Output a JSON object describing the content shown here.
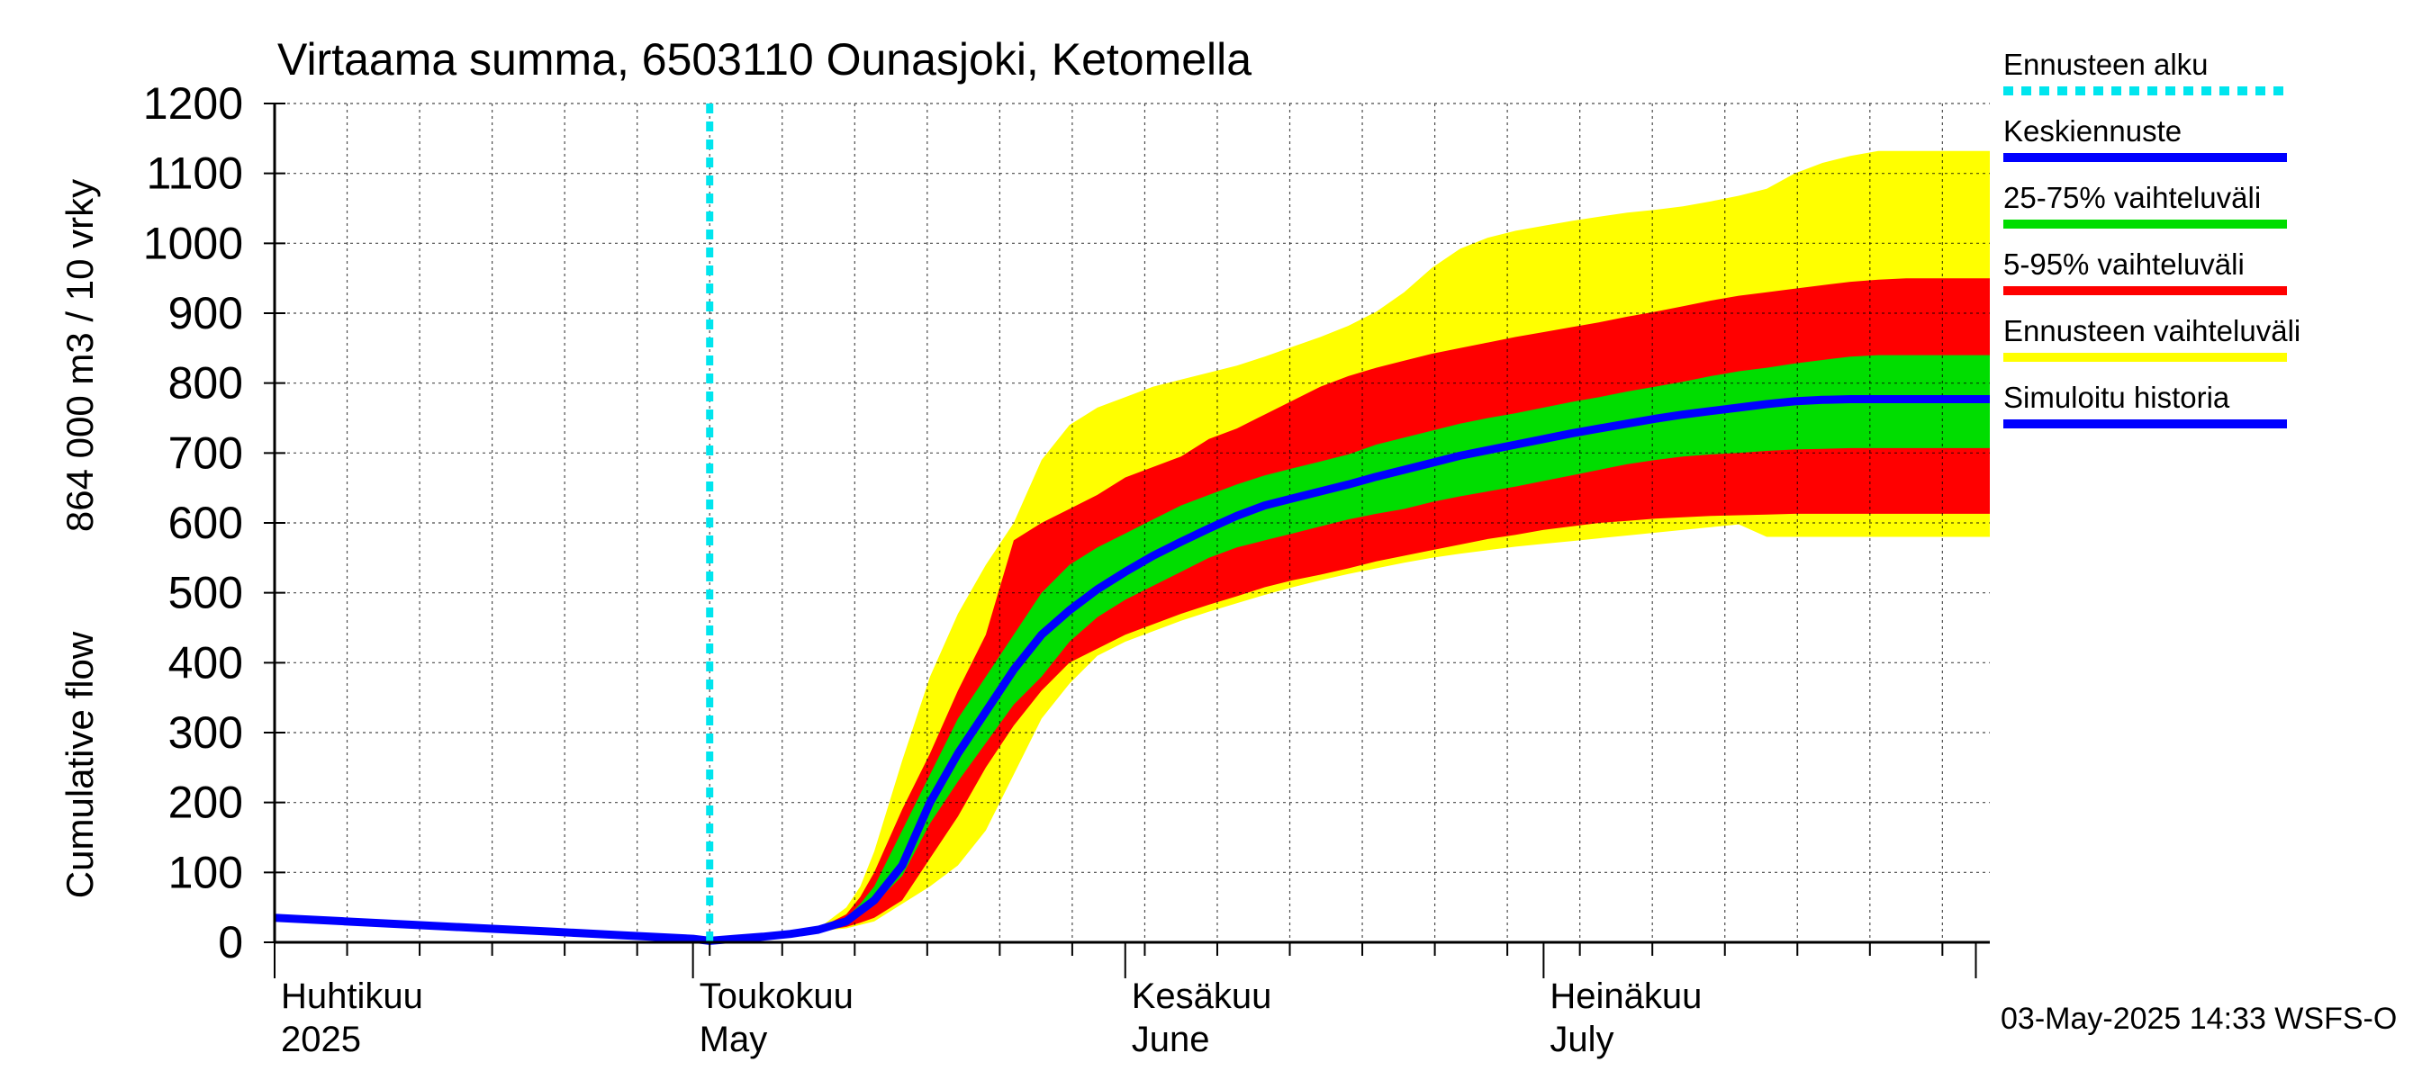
{
  "chart_data": {
    "type": "area",
    "title": "Virtaama summa, 6503110 Ounasjoki, Ketomella",
    "ylabel_top": "864 000 m3 / 10 vrky",
    "ylabel_bottom": "Cumulative flow",
    "ylim": [
      0,
      1200
    ],
    "y_ticks": [
      0,
      100,
      200,
      300,
      400,
      500,
      600,
      700,
      800,
      900,
      1000,
      1100,
      1200
    ],
    "x_range_days": [
      0,
      123
    ],
    "x_axis": {
      "start_date": "2025-04-01",
      "end_date": "2025-08-02",
      "month_labels": [
        {
          "fi": "Huhtikuu",
          "en": "2025",
          "day": 0
        },
        {
          "fi": "Toukokuu",
          "en": "May",
          "day": 30
        },
        {
          "fi": "Kesäkuu",
          "en": "June",
          "day": 61
        },
        {
          "fi": "Heinäkuu",
          "en": "July",
          "day": 91
        }
      ],
      "month_boundaries": [
        0,
        30,
        61,
        91,
        122
      ]
    },
    "grid": true,
    "forecast_start_day": 31.2,
    "legend": {
      "placement": "right",
      "entries": [
        {
          "label": "Ennusteen alku",
          "color": "#00e5ee",
          "style": "dotted"
        },
        {
          "label": "Keskiennuste",
          "color": "#0000ff",
          "style": "solid"
        },
        {
          "label": "25-75% vaihteluväli",
          "color": "#00dd00",
          "style": "solid"
        },
        {
          "label": "5-95% vaihteluväli",
          "color": "#ff0000",
          "style": "solid"
        },
        {
          "label": "Ennusteen vaihteluväli",
          "color": "#ffff00",
          "style": "solid"
        },
        {
          "label": "Simuloitu historia",
          "color": "#0000ff",
          "style": "solid"
        }
      ]
    },
    "colors": {
      "ensemble_range": "#ffff00",
      "range_5_95": "#ff0000",
      "range_25_75": "#00dd00",
      "median": "#0000ff",
      "history": "#0000ff",
      "forecast_start": "#00e5ee"
    },
    "series": {
      "history": {
        "x": [
          0,
          5,
          10,
          15,
          20,
          25,
          30,
          31.2
        ],
        "y": [
          35,
          30,
          25,
          20,
          15,
          10,
          5,
          2
        ]
      },
      "days": [
        31.2,
        33,
        35,
        37,
        39,
        41,
        42,
        43,
        45,
        47,
        49,
        51,
        53,
        55,
        57,
        59,
        61,
        63,
        65,
        67,
        69,
        71,
        73,
        75,
        77,
        79,
        81,
        83,
        85,
        87,
        89,
        91,
        93,
        95,
        97,
        99,
        101,
        103,
        105,
        107,
        109,
        111,
        113,
        115,
        117,
        119,
        121,
        123
      ],
      "ensemble_max": [
        2,
        5,
        8,
        12,
        20,
        50,
        80,
        130,
        260,
        380,
        470,
        540,
        600,
        690,
        740,
        765,
        780,
        795,
        805,
        815,
        825,
        838,
        852,
        866,
        882,
        902,
        930,
        965,
        992,
        1008,
        1018,
        1025,
        1032,
        1038,
        1044,
        1048,
        1053,
        1060,
        1068,
        1078,
        1100,
        1115,
        1125,
        1132,
        1132,
        1132,
        1132,
        1132
      ],
      "p95": [
        2,
        5,
        8,
        12,
        20,
        40,
        65,
        100,
        190,
        270,
        360,
        440,
        575,
        600,
        620,
        640,
        665,
        680,
        695,
        720,
        735,
        755,
        775,
        795,
        810,
        822,
        832,
        842,
        850,
        858,
        866,
        873,
        880,
        887,
        895,
        902,
        910,
        918,
        925,
        930,
        935,
        940,
        945,
        948,
        950,
        950,
        950,
        950
      ],
      "p75": [
        2,
        5,
        8,
        12,
        20,
        35,
        55,
        80,
        160,
        240,
        320,
        380,
        440,
        500,
        540,
        565,
        585,
        605,
        625,
        640,
        655,
        668,
        678,
        688,
        698,
        712,
        722,
        732,
        742,
        750,
        757,
        765,
        773,
        780,
        788,
        795,
        802,
        810,
        817,
        822,
        828,
        833,
        838,
        840,
        840,
        840,
        840,
        840
      ],
      "median": [
        2,
        5,
        8,
        12,
        18,
        30,
        45,
        60,
        110,
        200,
        270,
        330,
        390,
        440,
        475,
        505,
        530,
        553,
        573,
        592,
        610,
        625,
        635,
        645,
        655,
        666,
        676,
        686,
        696,
        704,
        712,
        720,
        728,
        735,
        742,
        749,
        755,
        760,
        765,
        770,
        774,
        776,
        777,
        777,
        777,
        777,
        777,
        777
      ],
      "p25": [
        2,
        5,
        8,
        12,
        18,
        28,
        40,
        55,
        95,
        170,
        230,
        285,
        340,
        380,
        430,
        465,
        490,
        510,
        530,
        550,
        565,
        575,
        585,
        595,
        605,
        613,
        620,
        630,
        638,
        645,
        652,
        660,
        668,
        676,
        684,
        690,
        695,
        698,
        700,
        703,
        705,
        706,
        707,
        707,
        707,
        707,
        707,
        707
      ],
      "p5": [
        2,
        5,
        8,
        12,
        16,
        22,
        28,
        35,
        60,
        120,
        180,
        250,
        310,
        360,
        400,
        420,
        440,
        455,
        470,
        483,
        495,
        508,
        518,
        526,
        535,
        545,
        553,
        561,
        569,
        577,
        583,
        590,
        595,
        600,
        603,
        606,
        608,
        610,
        611,
        612,
        613,
        613,
        613,
        613,
        613,
        613,
        613,
        613
      ],
      "ensemble_min": [
        2,
        5,
        8,
        12,
        16,
        20,
        25,
        30,
        55,
        80,
        110,
        160,
        240,
        320,
        370,
        410,
        430,
        445,
        460,
        473,
        485,
        497,
        508,
        518,
        527,
        535,
        543,
        550,
        556,
        561,
        566,
        570,
        574,
        578,
        582,
        586,
        590,
        594,
        598,
        580,
        580,
        580,
        580,
        580,
        580,
        580,
        580,
        580
      ]
    }
  },
  "footer": {
    "timestamp": "03-May-2025 14:33 WSFS-O"
  }
}
